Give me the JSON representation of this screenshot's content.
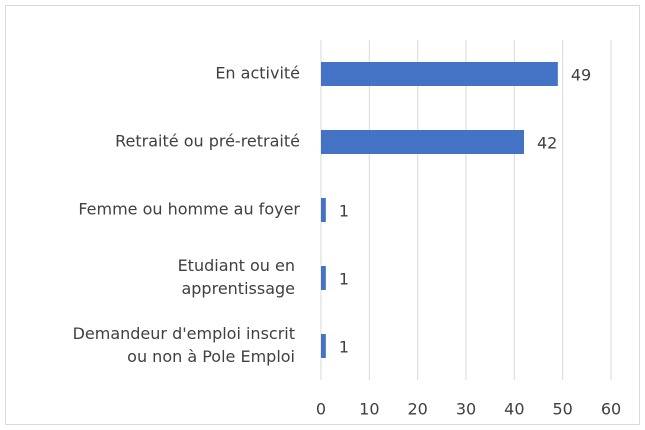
{
  "chart_data": {
    "type": "bar",
    "orientation": "horizontal",
    "categories": [
      "En activité",
      "Retraité ou pré-retraité",
      "Femme ou homme au foyer",
      [
        "Etudiant ou en",
        "apprentissage"
      ],
      [
        "Demandeur d'emploi inscrit",
        "ou non à Pole Emploi"
      ]
    ],
    "values": [
      49,
      42,
      1,
      1,
      1
    ],
    "color": "#4472c4",
    "xlim": [
      0,
      60
    ],
    "xticks": [
      0,
      10,
      20,
      30,
      40,
      50,
      60
    ],
    "grid": true
  }
}
